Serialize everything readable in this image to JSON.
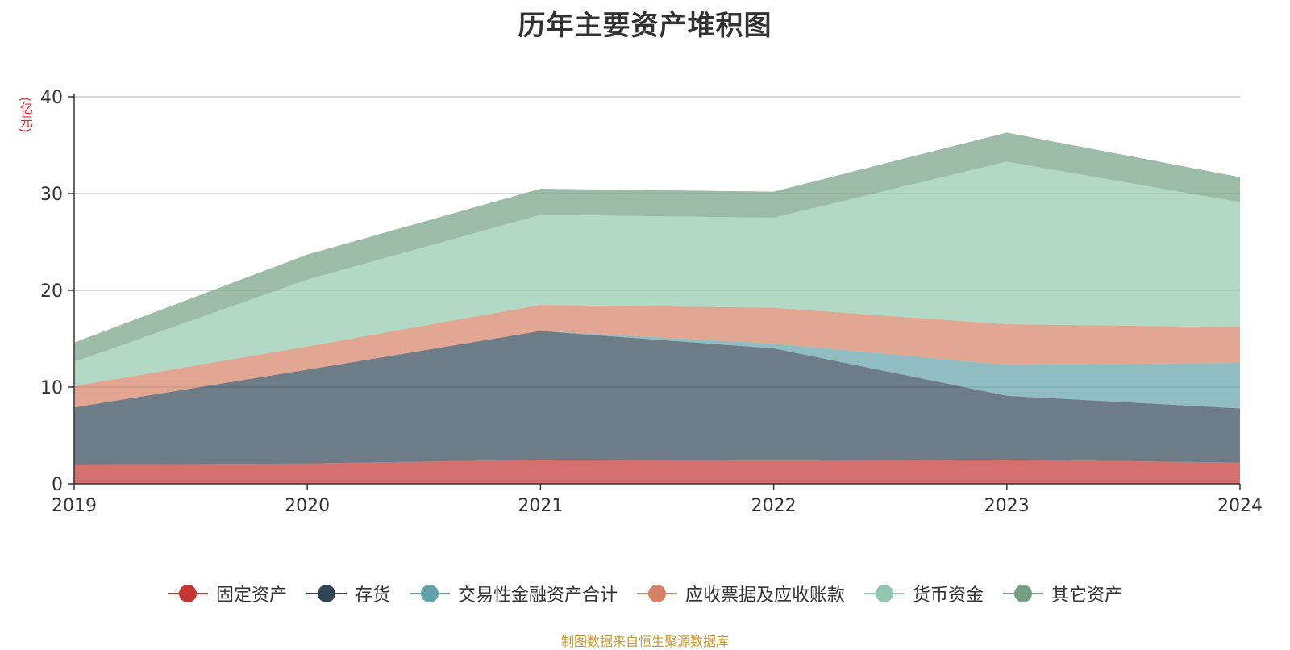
{
  "chart_data": {
    "type": "area",
    "stacked": true,
    "title": "历年主要资产堆积图",
    "ylabel": "(亿元)",
    "xlabel": "",
    "x": [
      "2019",
      "2020",
      "2021",
      "2022",
      "2023",
      "2024"
    ],
    "ylim": [
      0,
      40
    ],
    "yticks": [
      0,
      10,
      20,
      30,
      40
    ],
    "grid": true,
    "legend_position": "bottom",
    "series": [
      {
        "name": "固定资产",
        "color": "#c23531",
        "values": [
          2.0,
          2.1,
          2.5,
          2.4,
          2.5,
          2.2
        ]
      },
      {
        "name": "存货",
        "color": "#2f4554",
        "values": [
          5.9,
          9.7,
          13.3,
          11.6,
          6.6,
          5.6
        ]
      },
      {
        "name": "交易性金融资产合计",
        "color": "#61a0a8",
        "values": [
          0.0,
          0.0,
          0.0,
          0.5,
          3.2,
          4.7
        ]
      },
      {
        "name": "应收票据及应收账款",
        "color": "#d48265",
        "values": [
          2.2,
          2.4,
          2.7,
          3.7,
          4.2,
          3.7
        ]
      },
      {
        "name": "货币资金",
        "color": "#91c7ae",
        "values": [
          2.5,
          6.9,
          9.3,
          9.3,
          16.8,
          12.9
        ]
      },
      {
        "name": "其它资产",
        "color": "#749f83",
        "values": [
          2.0,
          2.6,
          2.7,
          2.7,
          3.0,
          2.6
        ]
      }
    ]
  },
  "source_note": "制图数据来自恒生聚源数据库"
}
